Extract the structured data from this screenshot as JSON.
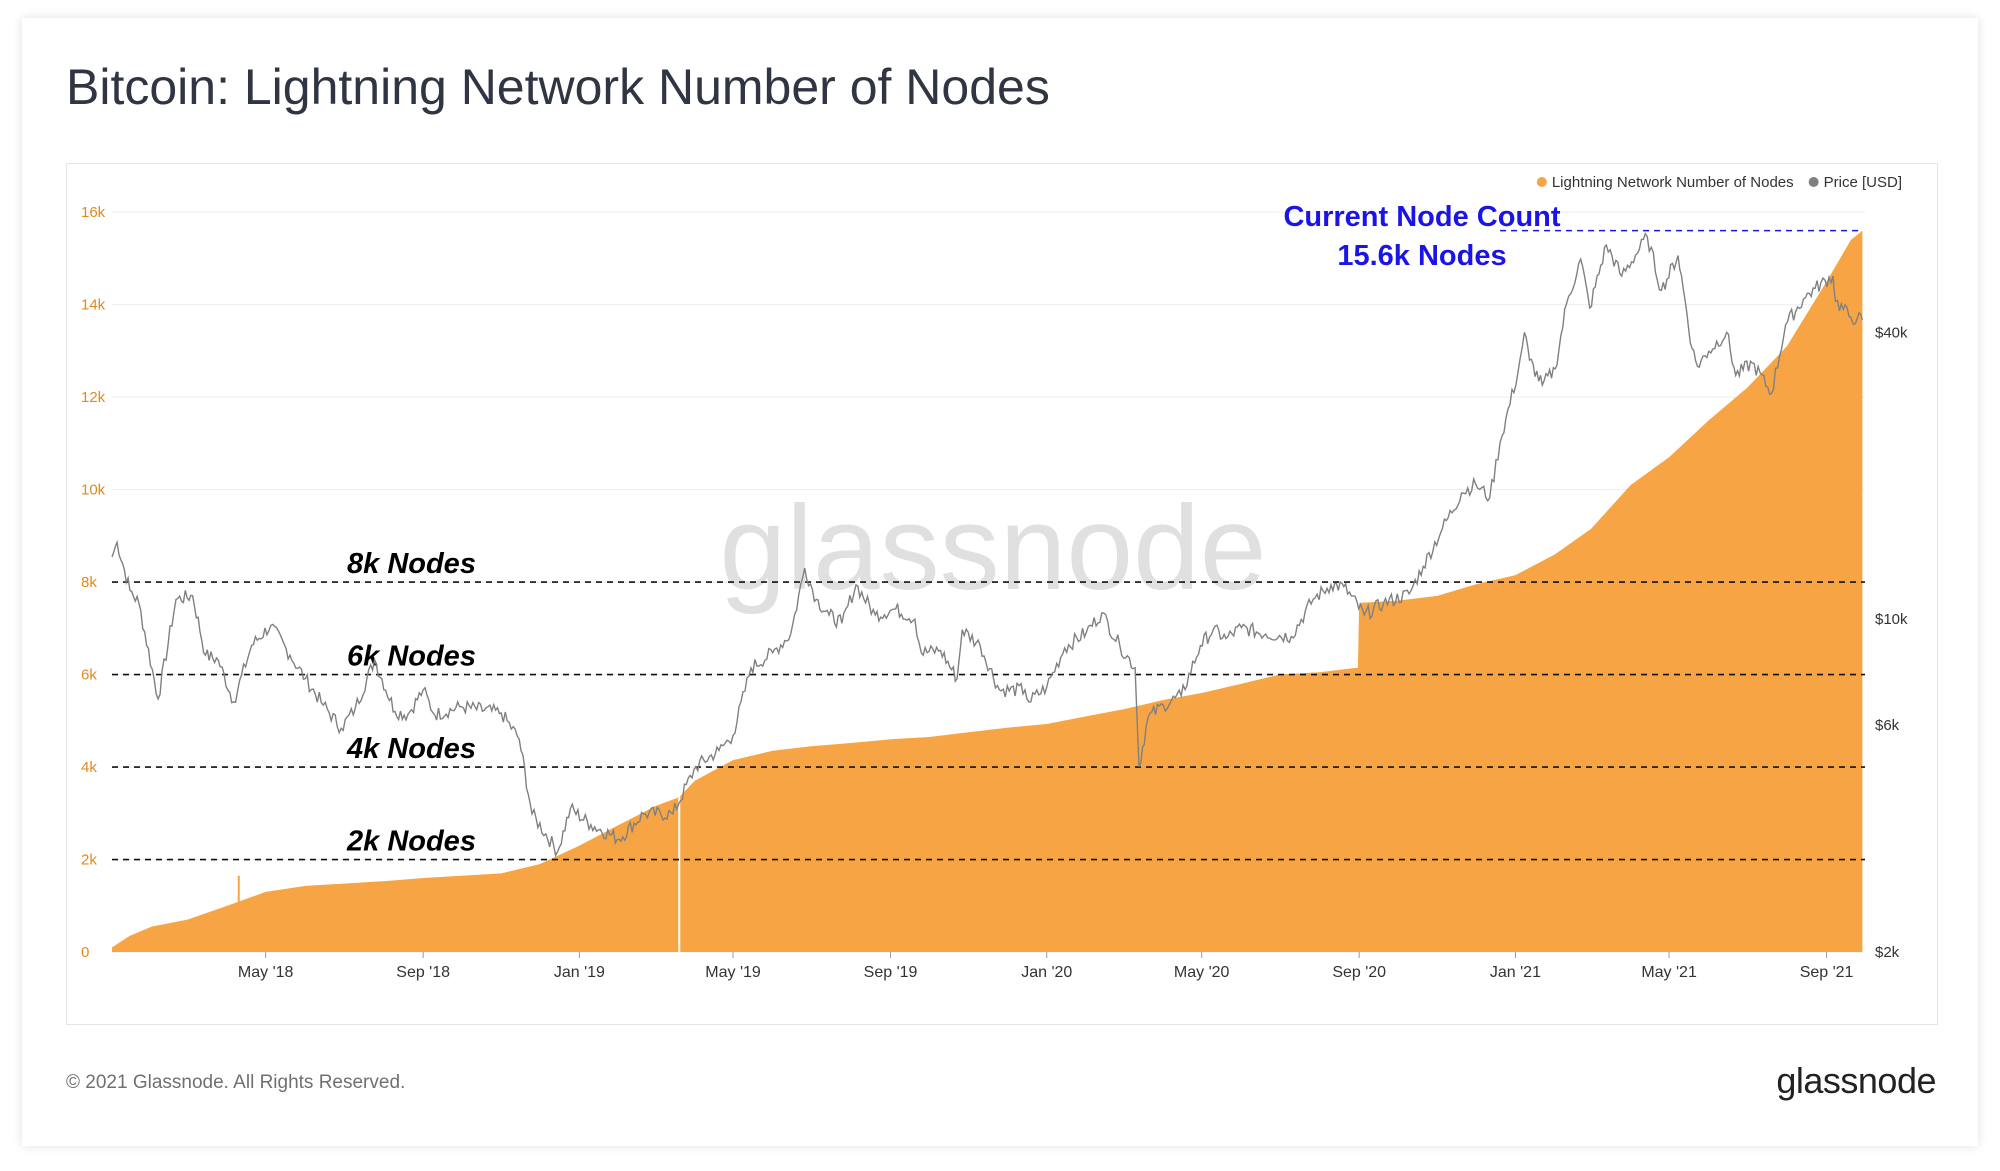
{
  "page": {
    "title": "Bitcoin: Lightning Network Number of Nodes",
    "footer": "© 2021 Glassnode. All Rights Reserved.",
    "brand": "glassnode",
    "watermark": "glassnode"
  },
  "chart_data": {
    "type": "area",
    "title": "Bitcoin: Lightning Network Number of Nodes",
    "legend": [
      {
        "name": "Lightning Network Number of Nodes",
        "color": "#f7a445"
      },
      {
        "name": "Price [USD]",
        "color": "#808080"
      }
    ],
    "legend_position": "top-right",
    "x_start": "2018-01-01",
    "x_end": "2021-10-01",
    "x_ticks": [
      {
        "date": "2018-05-01",
        "label": "May '18"
      },
      {
        "date": "2018-09-01",
        "label": "Sep '18"
      },
      {
        "date": "2019-01-01",
        "label": "Jan '19"
      },
      {
        "date": "2019-05-01",
        "label": "May '19"
      },
      {
        "date": "2019-09-01",
        "label": "Sep '19"
      },
      {
        "date": "2020-01-01",
        "label": "Jan '20"
      },
      {
        "date": "2020-05-01",
        "label": "May '20"
      },
      {
        "date": "2020-09-01",
        "label": "Sep '20"
      },
      {
        "date": "2021-01-01",
        "label": "Jan '21"
      },
      {
        "date": "2021-05-01",
        "label": "May '21"
      },
      {
        "date": "2021-09-01",
        "label": "Sep '21"
      }
    ],
    "y_left": {
      "range": [
        0,
        16500
      ],
      "ticks": [
        0,
        2000,
        4000,
        6000,
        8000,
        10000,
        12000,
        14000,
        16000
      ],
      "tick_labels": [
        "0",
        "2k",
        "4k",
        "6k",
        "8k",
        "10k",
        "12k",
        "14k",
        "16k"
      ],
      "color": "#e08a1e"
    },
    "y_right": {
      "scale": "log",
      "range": [
        2000,
        80000
      ],
      "ticks": [
        2000,
        6000,
        10000,
        40000
      ],
      "tick_labels": [
        "$2k",
        "$6k",
        "$10k",
        "$40k"
      ]
    },
    "series": [
      {
        "name": "Lightning Network Number of Nodes",
        "kind": "area",
        "axis": "left",
        "color": "#f7a445",
        "points": [
          [
            "2018-01-01",
            100
          ],
          [
            "2018-01-15",
            350
          ],
          [
            "2018-02-01",
            550
          ],
          [
            "2018-03-01",
            700
          ],
          [
            "2018-04-01",
            1000
          ],
          [
            "2018-05-01",
            1300
          ],
          [
            "2018-06-01",
            1430
          ],
          [
            "2018-07-01",
            1480
          ],
          [
            "2018-08-01",
            1530
          ],
          [
            "2018-09-01",
            1600
          ],
          [
            "2018-10-01",
            1650
          ],
          [
            "2018-11-01",
            1700
          ],
          [
            "2018-12-01",
            1900
          ],
          [
            "2019-01-01",
            2300
          ],
          [
            "2019-02-01",
            2750
          ],
          [
            "2019-03-01",
            3150
          ],
          [
            "2019-03-20",
            3350
          ],
          [
            "2019-04-01",
            3700
          ],
          [
            "2019-05-01",
            4150
          ],
          [
            "2019-06-01",
            4350
          ],
          [
            "2019-07-01",
            4450
          ],
          [
            "2019-08-01",
            4520
          ],
          [
            "2019-09-01",
            4600
          ],
          [
            "2019-10-01",
            4650
          ],
          [
            "2019-11-01",
            4750
          ],
          [
            "2019-12-01",
            4850
          ],
          [
            "2020-01-01",
            4930
          ],
          [
            "2020-02-01",
            5100
          ],
          [
            "2020-03-01",
            5250
          ],
          [
            "2020-04-01",
            5450
          ],
          [
            "2020-05-01",
            5600
          ],
          [
            "2020-06-01",
            5800
          ],
          [
            "2020-07-01",
            6000
          ],
          [
            "2020-08-01",
            6050
          ],
          [
            "2020-08-31",
            6150
          ],
          [
            "2020-09-01",
            7550
          ],
          [
            "2020-10-01",
            7600
          ],
          [
            "2020-11-01",
            7700
          ],
          [
            "2020-12-01",
            7950
          ],
          [
            "2021-01-01",
            8150
          ],
          [
            "2021-02-01",
            8600
          ],
          [
            "2021-03-01",
            9150
          ],
          [
            "2021-04-01",
            10100
          ],
          [
            "2021-05-01",
            10700
          ],
          [
            "2021-06-01",
            11500
          ],
          [
            "2021-07-01",
            12200
          ],
          [
            "2021-08-01",
            13100
          ],
          [
            "2021-09-01",
            14500
          ],
          [
            "2021-09-20",
            15400
          ],
          [
            "2021-09-29",
            15600
          ]
        ],
        "dips": [
          [
            "2019-03-20",
            0
          ],
          [
            "2018-04-10",
            1650
          ]
        ]
      },
      {
        "name": "Price [USD]",
        "kind": "line",
        "axis": "right",
        "color": "#808080",
        "points": [
          [
            "2018-01-01",
            13500
          ],
          [
            "2018-01-05",
            14500
          ],
          [
            "2018-01-15",
            11500
          ],
          [
            "2018-01-22",
            10800
          ],
          [
            "2018-02-06",
            6800
          ],
          [
            "2018-02-20",
            11000
          ],
          [
            "2018-03-05",
            11200
          ],
          [
            "2018-03-15",
            8400
          ],
          [
            "2018-03-25",
            8200
          ],
          [
            "2018-04-06",
            6700
          ],
          [
            "2018-04-20",
            8800
          ],
          [
            "2018-05-05",
            9700
          ],
          [
            "2018-05-20",
            8400
          ],
          [
            "2018-06-01",
            7500
          ],
          [
            "2018-06-15",
            6600
          ],
          [
            "2018-06-29",
            5900
          ],
          [
            "2018-07-10",
            6500
          ],
          [
            "2018-07-25",
            8200
          ],
          [
            "2018-08-10",
            6400
          ],
          [
            "2018-08-20",
            6300
          ],
          [
            "2018-09-01",
            7100
          ],
          [
            "2018-09-10",
            6300
          ],
          [
            "2018-10-01",
            6550
          ],
          [
            "2018-11-01",
            6350
          ],
          [
            "2018-11-15",
            5600
          ],
          [
            "2018-11-25",
            3900
          ],
          [
            "2018-12-15",
            3250
          ],
          [
            "2018-12-25",
            4000
          ],
          [
            "2019-01-10",
            3700
          ],
          [
            "2019-02-01",
            3450
          ],
          [
            "2019-02-20",
            3900
          ],
          [
            "2019-03-15",
            3900
          ],
          [
            "2019-04-02",
            4900
          ],
          [
            "2019-04-20",
            5300
          ],
          [
            "2019-05-01",
            5700
          ],
          [
            "2019-05-15",
            7900
          ],
          [
            "2019-06-01",
            8500
          ],
          [
            "2019-06-15",
            9300
          ],
          [
            "2019-06-26",
            12800
          ],
          [
            "2019-07-05",
            11000
          ],
          [
            "2019-07-15",
            10200
          ],
          [
            "2019-07-25",
            9800
          ],
          [
            "2019-08-05",
            11800
          ],
          [
            "2019-08-20",
            10200
          ],
          [
            "2019-09-05",
            10500
          ],
          [
            "2019-09-20",
            10000
          ],
          [
            "2019-09-25",
            8500
          ],
          [
            "2019-10-10",
            8600
          ],
          [
            "2019-10-23",
            7500
          ],
          [
            "2019-10-27",
            9500
          ],
          [
            "2019-11-10",
            8800
          ],
          [
            "2019-11-25",
            7100
          ],
          [
            "2019-12-15",
            7100
          ],
          [
            "2019-12-18",
            6700
          ],
          [
            "2020-01-01",
            7200
          ],
          [
            "2020-01-15",
            8700
          ],
          [
            "2020-02-01",
            9400
          ],
          [
            "2020-02-13",
            10300
          ],
          [
            "2020-02-27",
            8800
          ],
          [
            "2020-03-10",
            7900
          ],
          [
            "2020-03-13",
            4900
          ],
          [
            "2020-03-20",
            6200
          ],
          [
            "2020-04-01",
            6600
          ],
          [
            "2020-04-15",
            6900
          ],
          [
            "2020-04-30",
            8800
          ],
          [
            "2020-05-10",
            9500
          ],
          [
            "2020-05-20",
            9100
          ],
          [
            "2020-06-01",
            9600
          ],
          [
            "2020-06-20",
            9300
          ],
          [
            "2020-07-10",
            9200
          ],
          [
            "2020-07-27",
            11000
          ],
          [
            "2020-08-10",
            11800
          ],
          [
            "2020-08-20",
            11700
          ],
          [
            "2020-09-05",
            10200
          ],
          [
            "2020-09-20",
            10800
          ],
          [
            "2020-10-10",
            11300
          ],
          [
            "2020-10-21",
            12900
          ],
          [
            "2020-11-05",
            15500
          ],
          [
            "2020-11-20",
            18400
          ],
          [
            "2020-12-01",
            19200
          ],
          [
            "2020-12-12",
            18000
          ],
          [
            "2020-12-20",
            23500
          ],
          [
            "2021-01-03",
            33000
          ],
          [
            "2021-01-08",
            40000
          ],
          [
            "2021-01-12",
            35000
          ],
          [
            "2021-01-22",
            31000
          ],
          [
            "2021-02-01",
            33500
          ],
          [
            "2021-02-10",
            46000
          ],
          [
            "2021-02-21",
            57000
          ],
          [
            "2021-02-28",
            45000
          ],
          [
            "2021-03-13",
            61000
          ],
          [
            "2021-03-25",
            52500
          ],
          [
            "2021-04-14",
            63500
          ],
          [
            "2021-04-25",
            49000
          ],
          [
            "2021-05-08",
            58000
          ],
          [
            "2021-05-12",
            49500
          ],
          [
            "2021-05-19",
            37000
          ],
          [
            "2021-05-23",
            34000
          ],
          [
            "2021-06-01",
            36500
          ],
          [
            "2021-06-15",
            40000
          ],
          [
            "2021-06-22",
            32500
          ],
          [
            "2021-07-05",
            34500
          ],
          [
            "2021-07-20",
            29800
          ],
          [
            "2021-07-31",
            41500
          ],
          [
            "2021-08-14",
            47000
          ],
          [
            "2021-08-23",
            49500
          ],
          [
            "2021-09-06",
            52500
          ],
          [
            "2021-09-08",
            46500
          ],
          [
            "2021-09-20",
            43000
          ],
          [
            "2021-09-25",
            42800
          ],
          [
            "2021-09-29",
            42500
          ]
        ]
      }
    ],
    "reference_lines": [
      {
        "value": 2000,
        "label": "2k Nodes"
      },
      {
        "value": 4000,
        "label": "4k Nodes"
      },
      {
        "value": 6000,
        "label": "6k Nodes"
      },
      {
        "value": 8000,
        "label": "8k Nodes"
      }
    ],
    "current_marker": {
      "value": 15600,
      "date_start": "2020-12-20",
      "line1": "Current Node Count",
      "line2": "15.6k Nodes",
      "color": "#1a14e6"
    }
  }
}
